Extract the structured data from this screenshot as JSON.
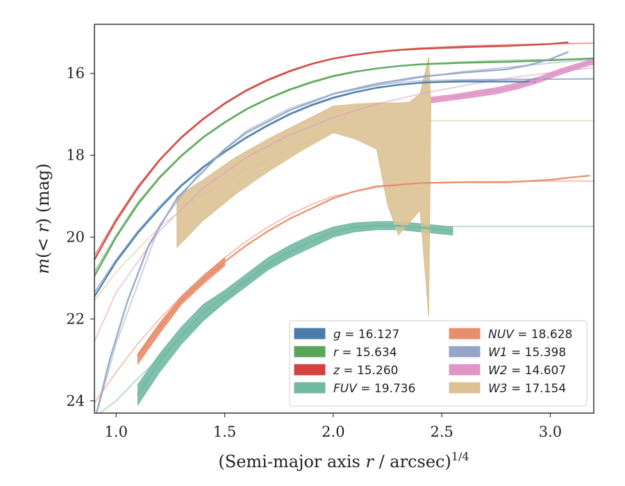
{
  "chart_data": {
    "type": "line",
    "xlabel": "(Semi-major axis r / arcsec)",
    "xlabel_parts": {
      "pre": "(Semi-major axis ",
      "var": "r",
      "post": " / arcsec)",
      "exp": "1/4"
    },
    "ylabel": "m(< r) (mag)",
    "ylabel_parts": {
      "pre": "m(",
      "var": "< r",
      "post": ") (mag)"
    },
    "xlim": [
      0.9,
      3.2
    ],
    "ylim": [
      24.3,
      14.8
    ],
    "y_inverted": true,
    "xticks": [
      "1.0",
      "1.5",
      "2.0",
      "2.5",
      "3.0"
    ],
    "xtick_values": [
      1.0,
      1.5,
      2.0,
      2.5,
      3.0
    ],
    "yticks": [
      "16",
      "18",
      "20",
      "22",
      "24"
    ],
    "ytick_values": [
      16,
      18,
      20,
      22,
      24
    ],
    "grid": false,
    "legend_position": "lower-right",
    "legend_columns": 2,
    "legend": [
      {
        "band": "g",
        "value": "16.127",
        "color": "#4c7daa"
      },
      {
        "band": "r",
        "value": "15.634",
        "color": "#5aa55a"
      },
      {
        "band": "z",
        "value": "15.260",
        "color": "#d3423d"
      },
      {
        "band": "FUV",
        "value": "19.736",
        "color": "#72b9a3"
      },
      {
        "band": "NUV",
        "value": "18.628",
        "color": "#e88e6c"
      },
      {
        "band": "W1",
        "value": "15.398",
        "color": "#94a5c8"
      },
      {
        "band": "W2",
        "value": "14.607",
        "color": "#df97c8"
      },
      {
        "band": "W3",
        "value": "17.154",
        "color": "#dcc193"
      }
    ],
    "series": [
      {
        "name": "g",
        "color": "#4c7daa",
        "role": "model",
        "x": [
          0.9,
          1.0,
          1.1,
          1.2,
          1.3,
          1.4,
          1.5,
          1.6,
          1.7,
          1.8,
          1.9,
          2.0,
          2.1,
          2.2,
          2.3,
          2.4,
          2.6,
          2.8,
          3.0,
          3.2
        ],
        "y": [
          21.35,
          20.55,
          19.85,
          19.25,
          18.72,
          18.28,
          17.9,
          17.55,
          17.25,
          16.98,
          16.76,
          16.58,
          16.45,
          16.36,
          16.28,
          16.22,
          16.17,
          16.15,
          16.14,
          16.13
        ]
      },
      {
        "name": "g",
        "color": "#4c7daa",
        "role": "data",
        "x": [
          0.9,
          1.0,
          1.1,
          1.2,
          1.3,
          1.4,
          1.5,
          1.6,
          1.7,
          1.8,
          1.9,
          2.0,
          2.1,
          2.2,
          2.3,
          2.4,
          2.5,
          2.6,
          2.7,
          2.8,
          2.93
        ],
        "y": [
          21.45,
          20.6,
          19.9,
          19.3,
          18.75,
          18.3,
          17.92,
          17.57,
          17.27,
          17.0,
          16.78,
          16.6,
          16.46,
          16.35,
          16.28,
          16.23,
          16.21,
          16.2,
          16.2,
          16.2,
          16.2
        ]
      },
      {
        "name": "r",
        "color": "#5aa55a",
        "role": "model",
        "x": [
          0.9,
          1.0,
          1.1,
          1.2,
          1.3,
          1.4,
          1.5,
          1.6,
          1.7,
          1.8,
          1.9,
          2.0,
          2.1,
          2.2,
          2.3,
          2.4,
          2.6,
          2.8,
          3.0,
          3.2
        ],
        "y": [
          20.85,
          19.95,
          19.15,
          18.52,
          18.0,
          17.55,
          17.18,
          16.86,
          16.6,
          16.38,
          16.2,
          16.05,
          15.95,
          15.88,
          15.82,
          15.77,
          15.72,
          15.68,
          15.66,
          15.64
        ]
      },
      {
        "name": "r",
        "color": "#5aa55a",
        "role": "data",
        "x": [
          0.9,
          1.0,
          1.1,
          1.2,
          1.3,
          1.4,
          1.5,
          1.6,
          1.7,
          1.8,
          1.9,
          2.0,
          2.1,
          2.2,
          2.3,
          2.4,
          2.6,
          2.8,
          3.0,
          3.2
        ],
        "y": [
          20.95,
          20.0,
          19.2,
          18.55,
          18.02,
          17.57,
          17.2,
          16.88,
          16.62,
          16.4,
          16.22,
          16.07,
          15.96,
          15.88,
          15.82,
          15.78,
          15.74,
          15.72,
          15.68,
          15.63
        ]
      },
      {
        "name": "z",
        "color": "#d3423d",
        "role": "model",
        "x": [
          0.9,
          1.0,
          1.1,
          1.2,
          1.3,
          1.4,
          1.5,
          1.6,
          1.7,
          1.8,
          1.9,
          2.0,
          2.1,
          2.2,
          2.3,
          2.4,
          2.6,
          2.8,
          3.0,
          3.2
        ],
        "y": [
          20.45,
          19.55,
          18.75,
          18.1,
          17.55,
          17.1,
          16.72,
          16.4,
          16.14,
          15.93,
          15.76,
          15.63,
          15.54,
          15.47,
          15.42,
          15.38,
          15.33,
          15.3,
          15.28,
          15.26
        ]
      },
      {
        "name": "z",
        "color": "#d3423d",
        "role": "data",
        "x": [
          0.9,
          1.0,
          1.1,
          1.2,
          1.3,
          1.4,
          1.5,
          1.6,
          1.7,
          1.8,
          1.9,
          2.0,
          2.1,
          2.2,
          2.3,
          2.4,
          2.6,
          2.8,
          3.0,
          3.08
        ],
        "y": [
          20.55,
          19.6,
          18.8,
          18.12,
          17.57,
          17.12,
          16.74,
          16.42,
          16.16,
          15.95,
          15.77,
          15.64,
          15.55,
          15.48,
          15.43,
          15.4,
          15.36,
          15.33,
          15.28,
          15.24
        ]
      },
      {
        "name": "W1",
        "color": "#94a5c8",
        "role": "model",
        "x": [
          0.9,
          1.0,
          1.2,
          1.4,
          1.6,
          1.8,
          2.0,
          2.2,
          2.4,
          2.6,
          2.8,
          3.0,
          3.2
        ],
        "y": [
          24.5,
          22.6,
          19.7,
          18.3,
          17.4,
          16.85,
          16.5,
          16.28,
          16.18,
          16.15,
          16.14,
          16.14,
          16.14
        ]
      },
      {
        "name": "W1",
        "color": "#94a5c8",
        "role": "data",
        "x": [
          0.91,
          0.97,
          1.05,
          1.15,
          1.28,
          1.4,
          1.5,
          1.6,
          1.8,
          2.0,
          2.2,
          2.4,
          2.6,
          2.8,
          2.9,
          3.0,
          3.08
        ],
        "y": [
          24.3,
          23.0,
          21.6,
          20.2,
          19.05,
          18.4,
          17.85,
          17.45,
          16.9,
          16.5,
          16.25,
          16.08,
          15.98,
          15.9,
          15.8,
          15.65,
          15.48
        ]
      },
      {
        "name": "W1",
        "color": "#94a5c8",
        "role": "model-outer",
        "x": [
          2.0,
          2.2,
          2.4,
          2.6,
          2.8,
          3.0,
          3.2
        ],
        "y": [
          16.5,
          16.3,
          16.1,
          15.95,
          15.85,
          15.75,
          15.65
        ]
      },
      {
        "name": "W2",
        "color": "#df97c8",
        "role": "model",
        "x": [
          0.9,
          1.0,
          1.2,
          1.4,
          1.6,
          1.8,
          2.0,
          2.2,
          2.4,
          2.6,
          2.8,
          3.0,
          3.2
        ],
        "y": [
          22.55,
          21.35,
          19.85,
          18.8,
          18.05,
          17.5,
          17.08,
          16.75,
          16.5,
          16.3,
          16.12,
          15.98,
          15.86
        ]
      },
      {
        "name": "W2",
        "color": "#df97c8",
        "role": "data",
        "x": [
          2.45,
          2.55,
          2.65,
          2.75,
          2.85,
          2.95,
          3.05,
          3.15,
          3.2
        ],
        "y": [
          16.65,
          16.58,
          16.5,
          16.42,
          16.3,
          16.15,
          15.95,
          15.78,
          15.7
        ]
      },
      {
        "name": "NUV",
        "color": "#e88e6c",
        "role": "model",
        "x": [
          0.9,
          1.0,
          1.1,
          1.2,
          1.3,
          1.4,
          1.5,
          1.6,
          1.7,
          1.8,
          1.9,
          2.0,
          2.2,
          2.4,
          2.6,
          2.8,
          3.0,
          3.2
        ],
        "y": [
          24.05,
          23.3,
          22.6,
          22.0,
          21.45,
          20.95,
          20.5,
          20.1,
          19.75,
          19.45,
          19.2,
          19.0,
          18.78,
          18.68,
          18.65,
          18.64,
          18.63,
          18.63
        ]
      },
      {
        "name": "NUV",
        "color": "#e88e6c",
        "role": "data",
        "x": [
          1.1,
          1.2,
          1.3,
          1.4,
          1.5,
          1.6,
          1.7,
          1.8,
          1.9,
          2.0,
          2.1,
          2.2,
          2.4,
          2.6,
          2.8,
          2.9,
          3.0,
          3.08,
          3.18
        ],
        "y": [
          22.9,
          22.2,
          21.55,
          21.05,
          20.6,
          20.2,
          19.85,
          19.55,
          19.3,
          19.05,
          18.88,
          18.76,
          18.68,
          18.66,
          18.66,
          18.63,
          18.6,
          18.55,
          18.5
        ]
      },
      {
        "name": "FUV",
        "color": "#72b9a3",
        "role": "model",
        "x": [
          0.9,
          1.0,
          1.1,
          1.2,
          1.3,
          1.4,
          1.5,
          1.6,
          1.7,
          1.8,
          1.9,
          2.0,
          2.1,
          2.2,
          2.4,
          2.6,
          2.8,
          3.0,
          3.2
        ],
        "y": [
          24.4,
          24.0,
          23.45,
          22.95,
          22.45,
          22.0,
          21.55,
          21.1,
          20.72,
          20.4,
          20.1,
          19.88,
          19.78,
          19.74,
          19.74,
          19.74,
          19.74,
          19.74,
          19.74
        ]
      },
      {
        "name": "FUV",
        "color": "#72b9a3",
        "role": "data",
        "x": [
          1.1,
          1.2,
          1.3,
          1.4,
          1.5,
          1.6,
          1.7,
          1.8,
          1.9,
          2.0,
          2.1,
          2.2,
          2.3,
          2.4,
          2.55
        ],
        "y": [
          23.85,
          23.05,
          22.4,
          21.85,
          21.45,
          21.05,
          20.65,
          20.35,
          20.1,
          19.88,
          19.75,
          19.72,
          19.72,
          19.77,
          19.85
        ]
      },
      {
        "name": "W3",
        "color": "#dcc193",
        "role": "model",
        "x": [
          0.9,
          1.0,
          1.2,
          1.4,
          1.6,
          1.8,
          2.0,
          2.2,
          2.4,
          2.6,
          2.8,
          3.0,
          3.2
        ],
        "y": [
          21.55,
          20.85,
          19.75,
          18.95,
          18.35,
          17.85,
          17.4,
          17.15,
          17.154,
          17.154,
          17.154,
          17.154,
          17.154
        ]
      },
      {
        "name": "FUV",
        "color": "#72b9a3",
        "role": "band",
        "x": [
          1.1,
          1.2,
          1.3,
          1.4,
          1.5,
          1.6,
          1.7,
          1.8,
          1.9,
          2.0,
          2.1,
          2.2,
          2.3,
          2.4,
          2.55
        ],
        "y_low": [
          24.1,
          23.3,
          22.62,
          22.05,
          21.6,
          21.2,
          20.8,
          20.5,
          20.25,
          20.0,
          19.87,
          19.82,
          19.82,
          19.87,
          19.95
        ],
        "y_high": [
          23.6,
          22.85,
          22.2,
          21.65,
          21.3,
          20.9,
          20.5,
          20.2,
          19.95,
          19.75,
          19.65,
          19.62,
          19.62,
          19.67,
          19.75
        ]
      },
      {
        "name": "NUV",
        "color": "#e88e6c",
        "role": "band",
        "x": [
          1.1,
          1.2,
          1.3,
          1.4,
          1.5
        ],
        "y_low": [
          23.1,
          22.35,
          21.65,
          21.15,
          20.7
        ],
        "y_high": [
          22.85,
          22.1,
          21.45,
          20.95,
          20.5
        ]
      },
      {
        "name": "W2",
        "color": "#df97c8",
        "role": "band",
        "x": [
          2.45,
          2.55,
          2.65,
          2.75,
          2.85,
          2.95,
          3.05,
          3.15,
          3.2
        ],
        "y_low": [
          16.72,
          16.65,
          16.58,
          16.5,
          16.38,
          16.22,
          16.02,
          15.85,
          15.78
        ],
        "y_high": [
          16.58,
          16.52,
          16.43,
          16.35,
          16.23,
          16.08,
          15.88,
          15.72,
          15.64
        ]
      },
      {
        "name": "W3",
        "color": "#dcc193",
        "role": "band",
        "x": [
          1.28,
          1.4,
          1.55,
          1.7,
          1.85,
          2.0,
          2.1,
          2.2,
          2.25,
          2.3,
          2.35,
          2.4,
          2.44,
          2.45
        ],
        "y_low": [
          20.25,
          19.6,
          18.95,
          18.4,
          17.9,
          17.45,
          17.6,
          17.85,
          19.2,
          19.95,
          19.65,
          19.35,
          21.95,
          16.75
        ],
        "y_high": [
          19.0,
          18.6,
          18.05,
          17.6,
          17.2,
          16.8,
          16.75,
          16.72,
          16.72,
          16.72,
          16.7,
          16.5,
          15.6,
          16.75
        ]
      }
    ]
  }
}
